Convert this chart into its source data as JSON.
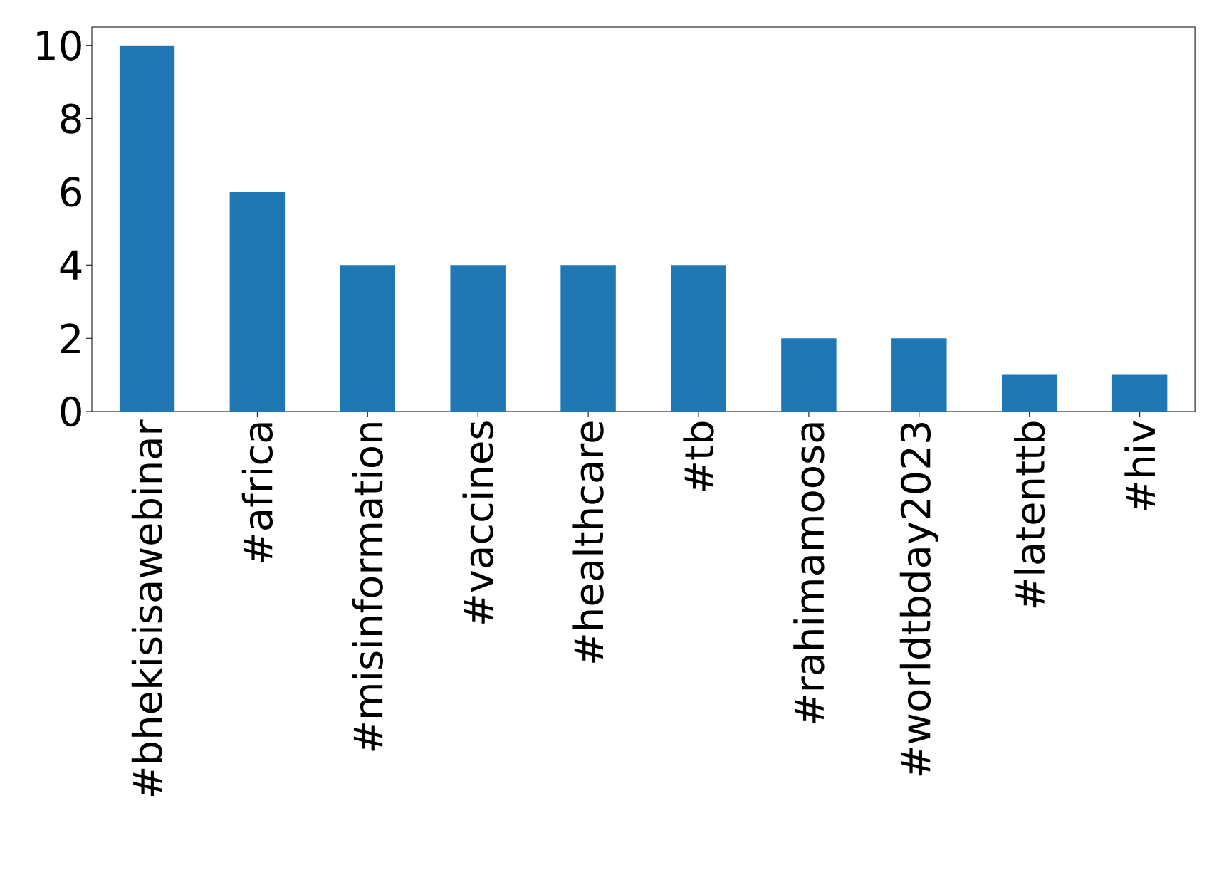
{
  "chart_data": {
    "type": "bar",
    "categories": [
      "#bhekisisawebinar",
      "#africa",
      "#misinformation",
      "#vaccines",
      "#healthcare",
      "#tb",
      "#rahimamoosa",
      "#worldtbday2023",
      "#latenttb",
      "#hiv"
    ],
    "values": [
      10,
      6,
      4,
      4,
      4,
      4,
      2,
      2,
      1,
      1
    ],
    "color": "#1f77b4",
    "ylim": [
      0,
      10.5
    ],
    "yticks": [
      0,
      2,
      4,
      6,
      8,
      10
    ]
  }
}
